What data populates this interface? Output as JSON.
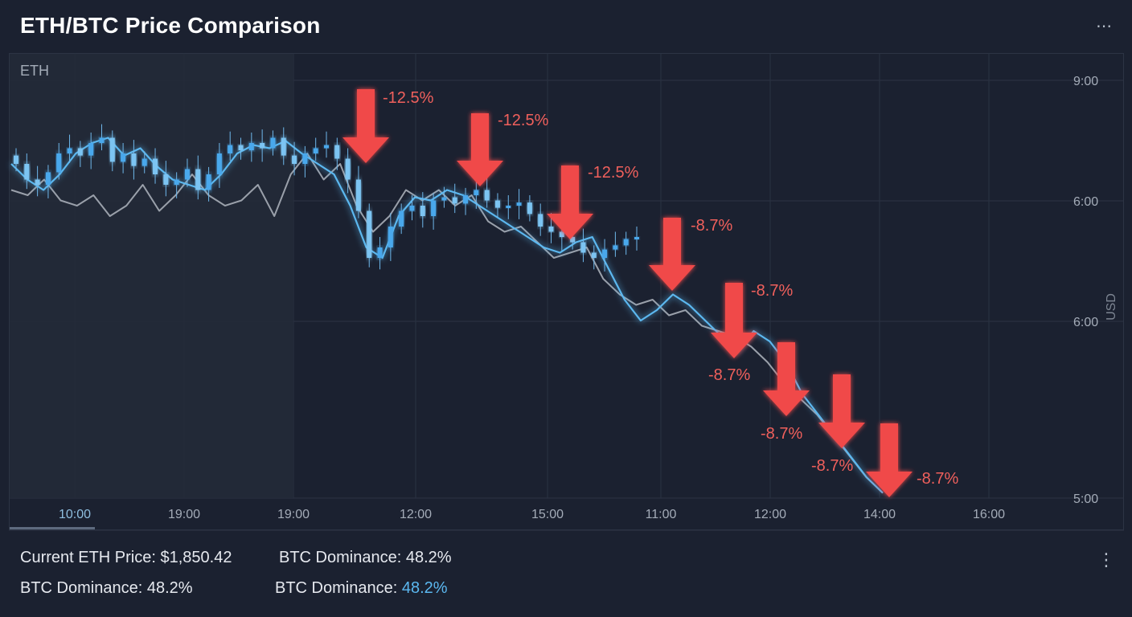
{
  "header": {
    "title": "ETH/BTC Price Comparison",
    "menu_icon": "more-horizontal-icon"
  },
  "chart_data": {
    "type": "line",
    "panel_label": "ETH",
    "ylabel": "USD",
    "y_ticks": [
      "9:00",
      "6:00",
      "6:00",
      "5:00"
    ],
    "x_ticks": [
      "10:00",
      "19:00",
      "19:00",
      "12:00",
      "15:00",
      "11:00",
      "12:00",
      "14:00",
      "16:00"
    ],
    "active_x_tick": "10:00",
    "series": [
      {
        "kind": "candlestick",
        "color": "#4aa8ec",
        "closes": [
          8.2,
          8.05,
          8.0,
          8.12,
          8.3,
          8.35,
          8.28,
          8.4,
          8.45,
          8.22,
          8.3,
          8.18,
          8.25,
          8.1,
          8.0,
          8.05,
          8.15,
          7.95,
          8.1,
          8.3,
          8.38,
          8.33,
          8.4,
          8.35,
          8.45,
          8.28,
          8.2,
          8.3,
          8.35,
          8.38,
          8.25,
          8.05,
          7.75,
          7.3,
          7.4,
          7.6,
          7.75,
          7.8,
          7.7,
          7.85,
          7.88,
          7.82,
          7.9,
          7.95,
          7.85,
          7.78,
          7.8,
          7.83,
          7.72,
          7.6,
          7.55,
          7.5,
          7.45,
          7.35,
          7.3,
          7.38,
          7.42,
          7.48,
          7.5
        ]
      },
      {
        "kind": "line",
        "color": "#5bb8f0",
        "values": [
          8.2,
          8.05,
          7.95,
          8.1,
          8.3,
          8.4,
          8.45,
          8.28,
          8.35,
          8.18,
          8.05,
          8.0,
          7.95,
          8.1,
          8.3,
          8.38,
          8.35,
          8.42,
          8.3,
          8.2,
          8.1,
          7.8,
          7.4,
          7.3,
          7.7,
          7.88,
          7.85,
          7.95,
          7.9,
          7.8,
          7.7,
          7.6,
          7.5,
          7.4,
          7.35,
          7.45,
          7.5,
          7.2,
          6.9,
          6.7,
          6.8,
          6.95,
          6.85,
          6.7,
          6.55,
          6.4,
          6.6,
          6.5,
          6.3,
          6.0,
          5.8,
          5.6,
          5.4,
          5.2,
          5.05
        ]
      },
      {
        "kind": "line",
        "color": "#9aa0aa",
        "values": [
          7.95,
          7.9,
          8.05,
          7.85,
          7.8,
          7.9,
          7.7,
          7.8,
          8.0,
          7.75,
          7.9,
          8.1,
          7.9,
          7.8,
          7.85,
          8.0,
          7.7,
          8.1,
          8.3,
          8.05,
          8.2,
          7.8,
          7.55,
          7.7,
          7.95,
          7.85,
          7.95,
          7.8,
          7.9,
          7.65,
          7.55,
          7.6,
          7.45,
          7.3,
          7.35,
          7.4,
          7.1,
          6.95,
          6.85,
          6.9,
          6.75,
          6.8,
          6.65,
          6.6,
          6.55,
          6.45,
          6.3,
          6.1,
          5.95,
          5.8,
          5.6,
          5.4,
          5.2,
          5.05
        ]
      }
    ],
    "annotations": [
      {
        "label": "-12.5%",
        "kind": "down-arrow"
      },
      {
        "label": "-12.5%",
        "kind": "down-arrow"
      },
      {
        "label": "-12.5%",
        "kind": "down-arrow"
      },
      {
        "label": "-8.7%",
        "kind": "down-arrow"
      },
      {
        "label": "-8.7%",
        "kind": "down-arrow"
      },
      {
        "label": "-8.7%",
        "kind": "down-arrow"
      },
      {
        "label": "-8.7%",
        "kind": "down-arrow"
      },
      {
        "label": "-8.7%",
        "kind": "down-arrow"
      },
      {
        "label": "-8.7%",
        "kind": "down-arrow"
      }
    ],
    "colors": {
      "eth": "#4aa8ec",
      "btc": "#9aa0aa",
      "arrow": "#f04a4a",
      "arrow_label": "#f0605c"
    }
  },
  "footer": {
    "eth_price": "Current ETH Price: $1,850.42",
    "dominance_1": "BTC Dominance: 48.2%",
    "dominance_2": "BTC Dominance: 48.2%",
    "dominance_3_prefix": "BTC Dominance: ",
    "dominance_3_value": "48.2%",
    "menu_icon": "more-vertical-icon"
  }
}
